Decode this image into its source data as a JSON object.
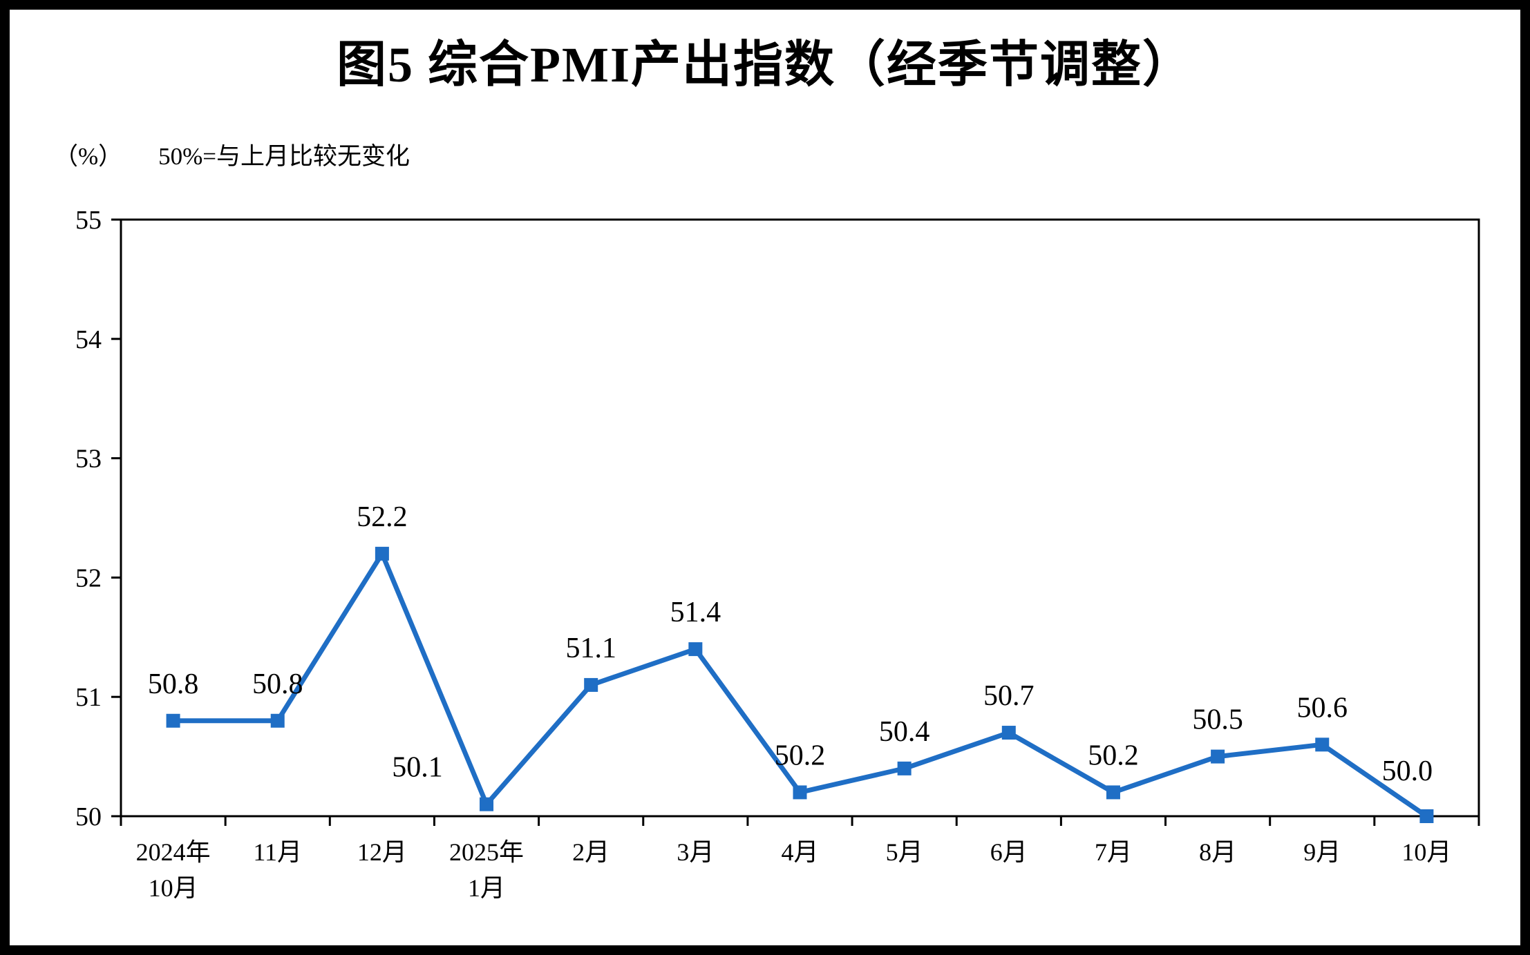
{
  "chart": {
    "title": "图5 综合PMI产出指数（经季节调整）",
    "unit_label": "（%）",
    "note": "50%=与上月比较无变化"
  },
  "chart_data": {
    "type": "line",
    "title": "图5 综合PMI产出指数（经季节调整）",
    "ylabel": "（%）",
    "annotation": "50%=与上月比较无变化",
    "categories": [
      [
        "2024年",
        "10月"
      ],
      [
        "11月"
      ],
      [
        "12月"
      ],
      [
        "2025年",
        "1月"
      ],
      [
        "2月"
      ],
      [
        "3月"
      ],
      [
        "4月"
      ],
      [
        "5月"
      ],
      [
        "6月"
      ],
      [
        "7月"
      ],
      [
        "8月"
      ],
      [
        "9月"
      ],
      [
        "10月"
      ]
    ],
    "values": [
      50.8,
      50.8,
      52.2,
      50.1,
      51.1,
      51.4,
      50.2,
      50.4,
      50.7,
      50.2,
      50.5,
      50.6,
      50.0
    ],
    "data_labels": [
      "50.8",
      "50.8",
      "52.2",
      "50.1",
      "51.1",
      "51.4",
      "50.2",
      "50.4",
      "50.7",
      "50.2",
      "50.5",
      "50.6",
      "50.0"
    ],
    "ylim": [
      50,
      55
    ],
    "yticks": [
      50,
      51,
      52,
      53,
      54,
      55
    ],
    "grid": false,
    "legend": "none",
    "marker": "square",
    "line_color": "#1f6ec5",
    "axis_color": "#000000",
    "label_color": "#000000",
    "background": "#ffffff"
  }
}
